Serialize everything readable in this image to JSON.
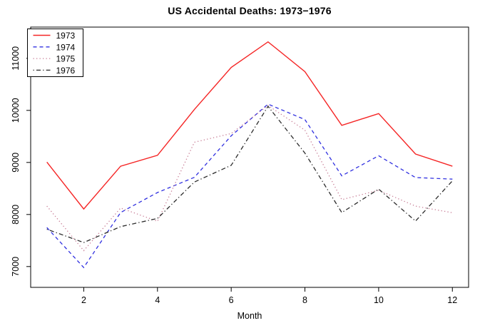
{
  "title": "US Accidental Deaths: 1973−1976",
  "background": "#ffffff",
  "chart_data": {
    "type": "line",
    "title": "US Accidental Deaths: 1973−1976",
    "xlabel": "Month",
    "ylabel": "",
    "x": [
      1,
      2,
      3,
      4,
      5,
      6,
      7,
      8,
      9,
      10,
      11,
      12
    ],
    "xticks": [
      2,
      4,
      6,
      8,
      10,
      12
    ],
    "yticks": [
      7000,
      8000,
      9000,
      10000,
      11000
    ],
    "xlim": [
      0.56,
      12.44
    ],
    "ylim": [
      6600,
      11600
    ],
    "grid": false,
    "box": true,
    "legend_position": "top-left",
    "series": [
      {
        "name": "1973",
        "color": "#f52525",
        "style": "solid",
        "values": [
          9007,
          8106,
          8928,
          9137,
          10017,
          10826,
          11317,
          10744,
          9713,
          9938,
          9161,
          8927
        ]
      },
      {
        "name": "1974",
        "color": "#3030e0",
        "style": "dashed",
        "values": [
          7750,
          6981,
          8038,
          8422,
          8714,
          9512,
          10120,
          9823,
          8743,
          9129,
          8710,
          8680
        ]
      },
      {
        "name": "1975",
        "color": "#c87e96",
        "style": "dotted",
        "values": [
          8162,
          7306,
          8124,
          7870,
          9387,
          9556,
          10093,
          9620,
          8285,
          8466,
          8160,
          8034
        ]
      },
      {
        "name": "1976",
        "color": "#2b2b2b",
        "style": "dashdot",
        "values": [
          7717,
          7461,
          7767,
          7925,
          8623,
          8945,
          10078,
          9179,
          8037,
          8488,
          7874,
          8647
        ]
      }
    ]
  }
}
